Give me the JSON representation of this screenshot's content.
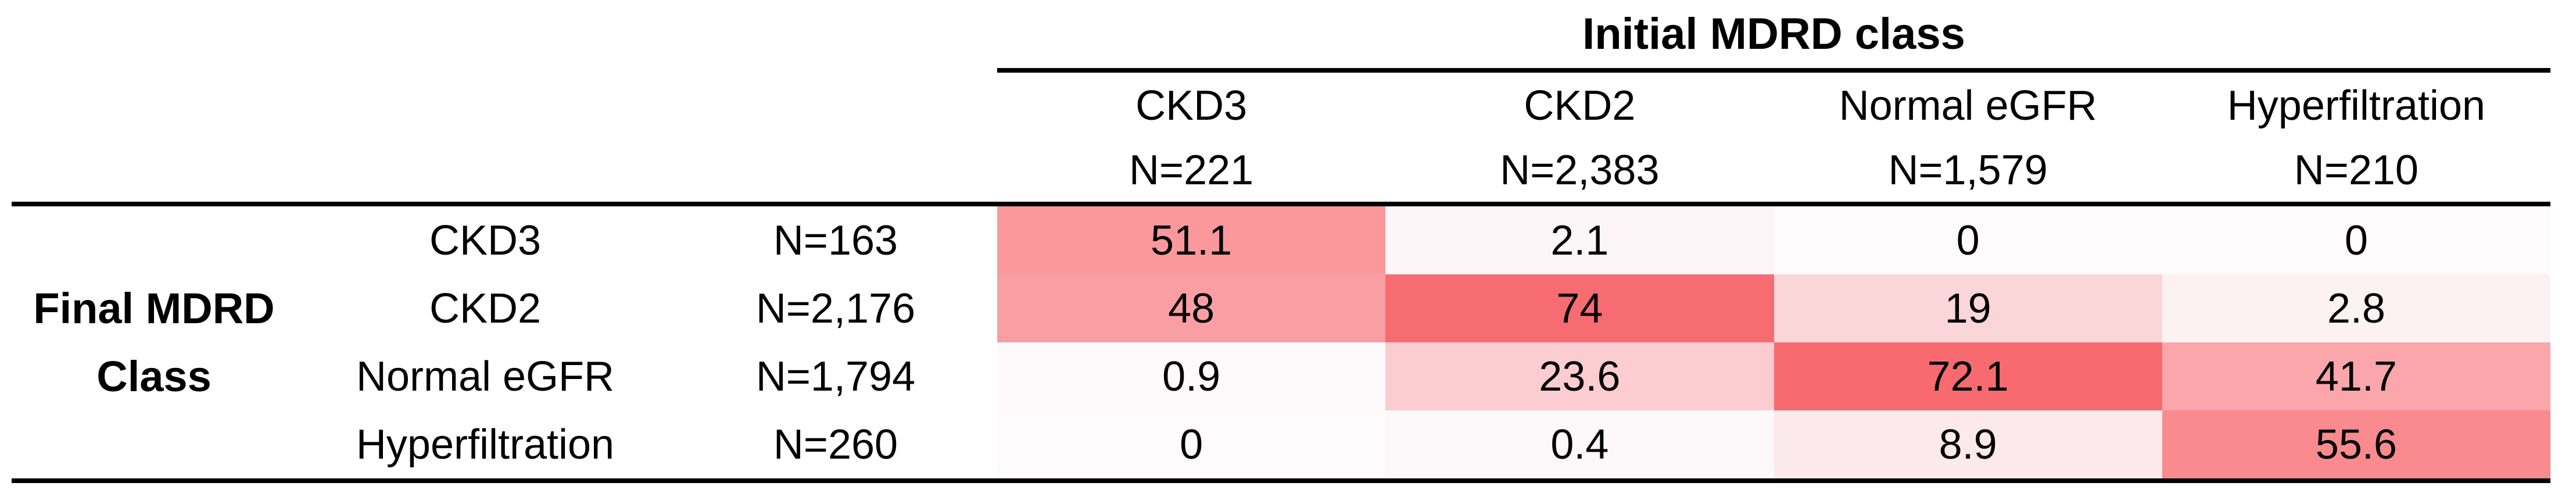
{
  "title": "Initial MDRD class",
  "row_axis": {
    "line1": "Final MDRD",
    "line2": "Class"
  },
  "columns": [
    {
      "label": "CKD3",
      "n": "N=221"
    },
    {
      "label": "CKD2",
      "n": "N=2,383"
    },
    {
      "label": "Normal eGFR",
      "n": "N=1,579"
    },
    {
      "label": "Hyperfiltration",
      "n": "N=210"
    }
  ],
  "rows": [
    {
      "label": "CKD3",
      "n": "N=163",
      "cells": [
        {
          "value": "51.1",
          "color": "#FA989C"
        },
        {
          "value": "2.1",
          "color": "#FDF6F8"
        },
        {
          "value": "0",
          "color": "#FDFBFC"
        },
        {
          "value": "0",
          "color": "#FDFBFC"
        }
      ]
    },
    {
      "label": "CKD2",
      "n": "N=2,176",
      "cells": [
        {
          "value": "48",
          "color": "#F99FA3"
        },
        {
          "value": "74",
          "color": "#F76C71"
        },
        {
          "value": "19",
          "color": "#FAD6D9"
        },
        {
          "value": "2.8",
          "color": "#FCF2F4"
        }
      ]
    },
    {
      "label": "Normal eGFR",
      "n": "N=1,794",
      "cells": [
        {
          "value": "0.9",
          "color": "#FDFAFB"
        },
        {
          "value": "23.6",
          "color": "#FBCDD1"
        },
        {
          "value": "72.1",
          "color": "#F76B70"
        },
        {
          "value": "41.7",
          "color": "#FAA6AA"
        }
      ]
    },
    {
      "label": "Hyperfiltration",
      "n": "N=260",
      "cells": [
        {
          "value": "0",
          "color": "#FDFBFC"
        },
        {
          "value": "0.4",
          "color": "#FDF8FA"
        },
        {
          "value": "8.9",
          "color": "#FBE9EC"
        },
        {
          "value": "55.6",
          "color": "#F98A8E"
        }
      ]
    }
  ],
  "chart_data": {
    "type": "heatmap",
    "title": "Initial MDRD class",
    "row_axis_label": "Final MDRD Class",
    "col_categories": [
      "CKD3",
      "CKD2",
      "Normal eGFR",
      "Hyperfiltration"
    ],
    "col_n": [
      221,
      2383,
      1579,
      210
    ],
    "row_categories": [
      "CKD3",
      "CKD2",
      "Normal eGFR",
      "Hyperfiltration"
    ],
    "row_n": [
      163,
      2176,
      1794,
      260
    ],
    "values": [
      [
        51.1,
        2.1,
        0,
        0
      ],
      [
        48,
        74,
        19,
        2.8
      ],
      [
        0.9,
        23.6,
        72.1,
        41.7
      ],
      [
        0,
        0.4,
        8.9,
        55.6
      ]
    ],
    "value_unit": "percent",
    "color_scale": {
      "min_color": "#FFFFFF",
      "max_color": "#F76C71",
      "min_value": 0,
      "max_value": 74
    },
    "legend": "none",
    "grid": "off"
  }
}
